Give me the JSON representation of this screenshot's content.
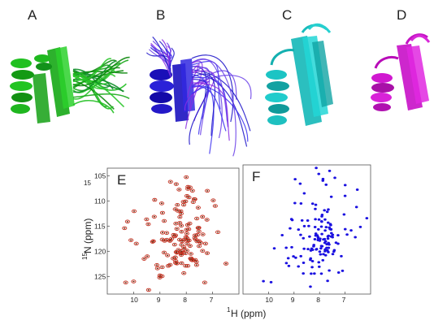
{
  "panels": {
    "A": {
      "label": "A",
      "color": "#1db81d"
    },
    "B": {
      "label": "B",
      "color": "#1a10c8",
      "alt_color": "#8a2be2"
    },
    "C": {
      "label": "C",
      "color": "#17c8c8"
    },
    "D": {
      "label": "D",
      "color": "#d010d0"
    }
  },
  "chart_data": [
    {
      "type": "scatter",
      "panel": "E",
      "xlabel_sup": "1",
      "xlabel_main": "H (ppm)",
      "ylabel_sup": "15",
      "ylabel_main": "N (ppm)",
      "xlim": [
        11.0,
        6.0
      ],
      "ylim": [
        128.5,
        103.5
      ],
      "x_ticks": [
        "10",
        "9",
        "8",
        "7"
      ],
      "y_ticks": [
        "105",
        "110",
        "115",
        "120",
        "125"
      ],
      "peak_color": "#c42a1a",
      "seed": 17,
      "clusters": [
        {
          "cx": 8.0,
          "cy": 118.5,
          "sx": 0.35,
          "sy": 2.2,
          "n": 55
        },
        {
          "cx": 8.2,
          "cy": 113.0,
          "sx": 0.8,
          "sy": 4.0,
          "n": 45
        },
        {
          "cx": 8.3,
          "cy": 121.0,
          "sx": 0.9,
          "sy": 3.5,
          "n": 25
        }
      ],
      "points": [
        {
          "x": 10.3,
          "y": 126.2
        },
        {
          "x": 10.0,
          "y": 126.0
        },
        {
          "x": 10.1,
          "y": 117.8
        },
        {
          "x": 9.2,
          "y": 109.8
        },
        {
          "x": 8.6,
          "y": 106.2
        },
        {
          "x": 8.0,
          "y": 105.3
        },
        {
          "x": 7.2,
          "y": 108.0
        },
        {
          "x": 6.8,
          "y": 116.2
        },
        {
          "x": 6.9,
          "y": 111.0
        },
        {
          "x": 9.0,
          "y": 124.8
        },
        {
          "x": 8.9,
          "y": 116.3
        },
        {
          "x": 7.9,
          "y": 109.3
        },
        {
          "x": 7.6,
          "y": 113.5
        },
        {
          "x": 9.6,
          "y": 121.5
        }
      ]
    },
    {
      "type": "scatter",
      "panel": "F",
      "xlabel_sup": "",
      "xlabel_main": "",
      "xlim": [
        11.0,
        6.0
      ],
      "ylim": [
        128.5,
        103.5
      ],
      "x_ticks": [
        "10",
        "9",
        "8",
        "7"
      ],
      "y_ticks": [],
      "peak_color": "#1a10e0",
      "seed": 29,
      "clusters": [
        {
          "cx": 7.9,
          "cy": 117.5,
          "sx": 0.35,
          "sy": 2.5,
          "n": 70
        },
        {
          "cx": 7.8,
          "cy": 114.0,
          "sx": 0.8,
          "sy": 5.0,
          "n": 40
        },
        {
          "cx": 8.0,
          "cy": 121.5,
          "sx": 0.7,
          "sy": 3.0,
          "n": 25
        }
      ],
      "points": [
        {
          "x": 10.2,
          "y": 126.0
        },
        {
          "x": 9.9,
          "y": 126.2
        },
        {
          "x": 8.0,
          "y": 103.5
        },
        {
          "x": 7.4,
          "y": 106.0
        },
        {
          "x": 9.1,
          "y": 114.0
        },
        {
          "x": 6.4,
          "y": 115.5
        },
        {
          "x": 6.6,
          "y": 117.5
        },
        {
          "x": 7.0,
          "y": 109.5
        },
        {
          "x": 9.3,
          "y": 122.5
        },
        {
          "x": 8.6,
          "y": 109.0
        },
        {
          "x": 7.1,
          "y": 124.0
        }
      ]
    }
  ]
}
